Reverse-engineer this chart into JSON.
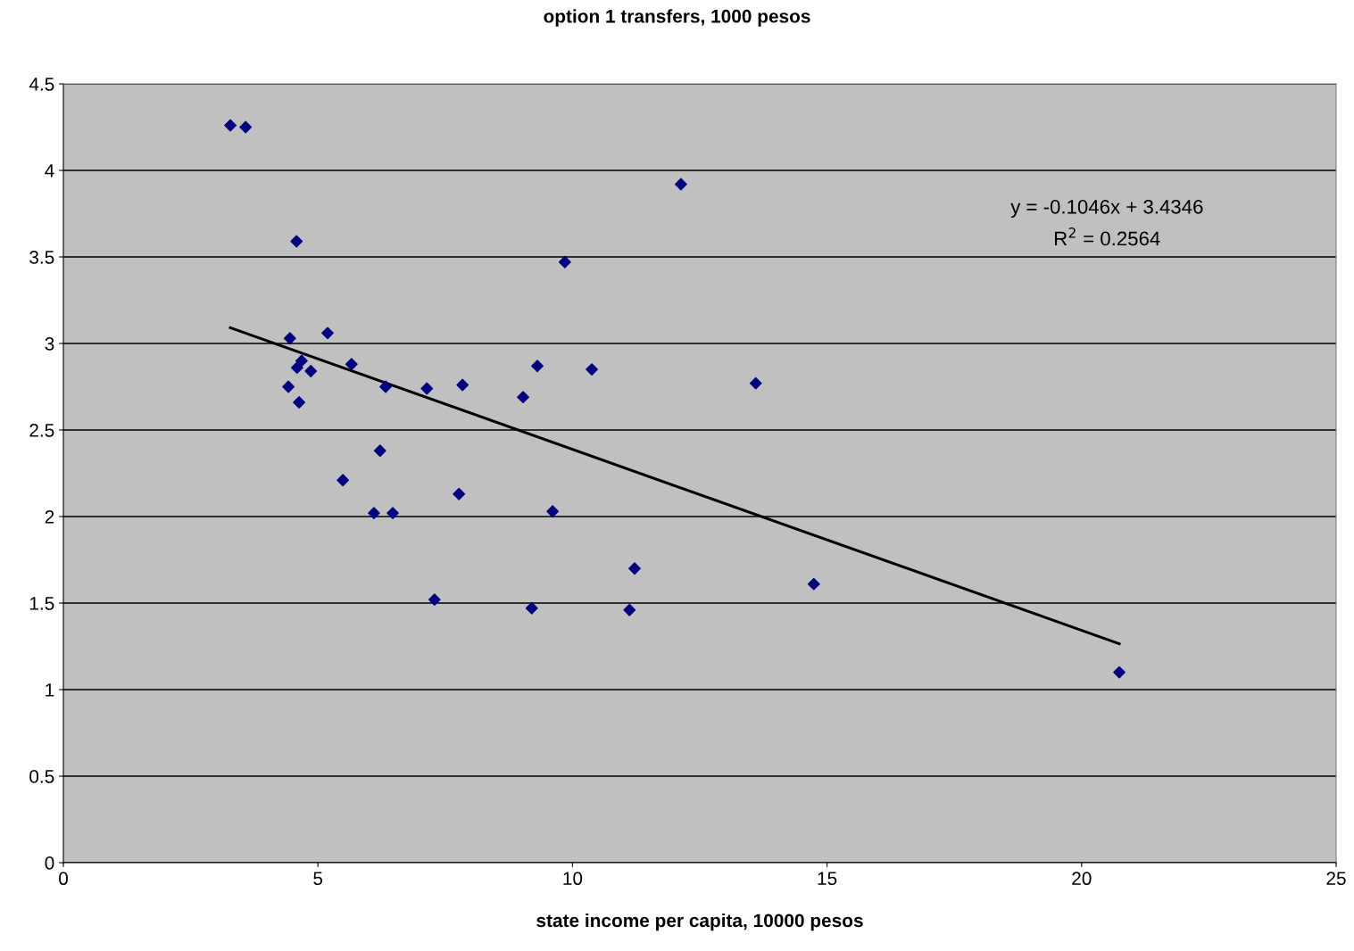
{
  "chart_data": {
    "type": "scatter",
    "title": "option 1 transfers, 1000 pesos",
    "xlabel": "state income per capita, 10000 pesos",
    "xlim": [
      0,
      25
    ],
    "xticks": [
      0,
      5,
      10,
      15,
      20,
      25
    ],
    "ylim": [
      0,
      4.5
    ],
    "yticks": [
      0,
      0.5,
      1,
      1.5,
      2,
      2.5,
      3,
      3.5,
      4,
      4.5
    ],
    "grid": "y",
    "legend": false,
    "marker": "diamond",
    "series": [
      {
        "color": "#000080",
        "x": [
          3.28,
          3.58,
          4.58,
          12.13,
          9.85,
          4.45,
          5.19,
          4.68,
          4.59,
          4.86,
          5.66,
          4.42,
          4.63,
          6.33,
          7.14,
          7.84,
          9.03,
          9.31,
          10.38,
          13.6,
          6.22,
          5.49,
          7.77,
          6.1,
          6.47,
          9.61,
          11.22,
          7.29,
          9.2,
          11.12,
          14.74,
          20.74
        ],
        "values": [
          4.26,
          4.25,
          3.59,
          3.92,
          3.47,
          3.03,
          3.06,
          2.9,
          2.86,
          2.84,
          2.88,
          2.75,
          2.66,
          2.75,
          2.74,
          2.76,
          2.69,
          2.87,
          2.85,
          2.77,
          2.38,
          2.21,
          2.13,
          2.02,
          2.02,
          2.03,
          1.7,
          1.52,
          1.47,
          1.46,
          1.61,
          1.1
        ]
      },
      {
        "type": "line",
        "color": "#000000",
        "marker": "none",
        "x": [
          3.28,
          20.74
        ],
        "values": [
          3.091,
          1.265
        ]
      }
    ],
    "annotations": [
      "y = -0.1046x + 3.4346",
      "R$^{2}$ = 0.2564"
    ]
  }
}
